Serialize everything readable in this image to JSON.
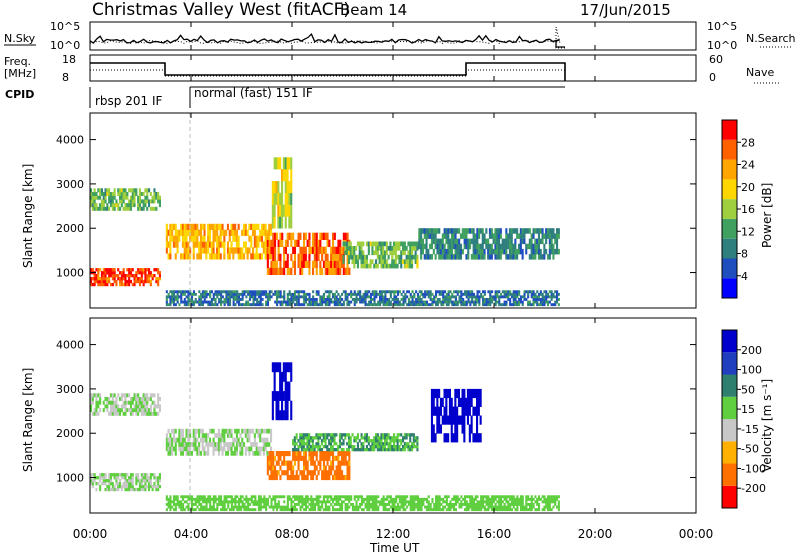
{
  "header": {
    "title": "Christmas Valley West (fitACF)",
    "beam": "Beam 14",
    "date": "17/Jun/2015"
  },
  "top_panels": {
    "nsky_label": "N.Sky",
    "nsky_ticks": [
      "10^5",
      "10^0"
    ],
    "nsearch_label": "N.Search",
    "freq_label_1": "Freq.",
    "freq_label_2": "[MHz]",
    "freq_ticks": [
      "18",
      "8"
    ],
    "nave_ticks": [
      "60",
      "0"
    ],
    "nave_label": "Nave",
    "cpid_label": "CPID",
    "cpid_segments": [
      {
        "label": "rbsp 201 IF",
        "start_hour": 0.0,
        "end_hour": 3.0
      },
      {
        "label": "normal (fast) 151 IF",
        "start_hour": 3.0,
        "end_hour": 18.6
      }
    ]
  },
  "colorbars": {
    "power": {
      "label": "Power [dB]",
      "ticks": [
        "28",
        "24",
        "20",
        "16",
        "12",
        "8",
        "4"
      ]
    },
    "velocity": {
      "label": "Velocity [m s⁻¹]",
      "ticks": [
        "200",
        "100",
        "50",
        "15",
        "-15",
        "-50",
        "-100",
        "-200"
      ]
    }
  },
  "axes": {
    "ylabel": "Slant Range [km]",
    "yticks": [
      "4000",
      "3000",
      "2000",
      "1000"
    ],
    "xlabel": "Time UT",
    "xticks": [
      "00:00",
      "04:00",
      "08:00",
      "12:00",
      "16:00",
      "20:00",
      "00:00"
    ]
  },
  "colors": {
    "power_scale": [
      "#0000ff",
      "#1f4fbf",
      "#2f7f7f",
      "#3fa05f",
      "#9fcf3f",
      "#ffd700",
      "#ffa500",
      "#ff6000",
      "#ff0000"
    ],
    "velocity_scale": [
      "#0000cc",
      "#1f3fbf",
      "#2f7f6f",
      "#5fcf3f",
      "#c8c8c8",
      "#ffb000",
      "#ff7000",
      "#ff0000"
    ]
  },
  "chart_data": [
    {
      "type": "heatmap",
      "title": "Christmas Valley West (fitACF)",
      "xlabel": "Time UT",
      "ylabel": "Slant Range [km]",
      "xlim": [
        0,
        24
      ],
      "ylim": [
        200,
        4600
      ],
      "colorbar": "Power [dB]",
      "clim": [
        0,
        32
      ],
      "patches": [
        {
          "t0": 0.0,
          "t1": 2.8,
          "r0": 700,
          "r1": 1100,
          "value": 28
        },
        {
          "t0": 0.0,
          "t1": 2.8,
          "r0": 2400,
          "r1": 2900,
          "value": 14
        },
        {
          "t0": 3.0,
          "t1": 7.2,
          "r0": 1300,
          "r1": 2100,
          "value": 22
        },
        {
          "t0": 7.0,
          "t1": 10.3,
          "r0": 950,
          "r1": 1900,
          "value": 26
        },
        {
          "t0": 7.2,
          "t1": 8.0,
          "r0": 2000,
          "r1": 3600,
          "value": 18
        },
        {
          "t0": 10.0,
          "t1": 13.0,
          "r0": 1100,
          "r1": 1700,
          "value": 14
        },
        {
          "t0": 13.0,
          "t1": 18.6,
          "r0": 1300,
          "r1": 2000,
          "value": 10
        },
        {
          "t0": 3.0,
          "t1": 18.6,
          "r0": 250,
          "r1": 600,
          "value": 8
        }
      ]
    },
    {
      "type": "heatmap",
      "xlabel": "Time UT",
      "ylabel": "Slant Range [km]",
      "xlim": [
        0,
        24
      ],
      "ylim": [
        200,
        4600
      ],
      "colorbar": "Velocity [m s⁻¹]",
      "clim": [
        -250,
        250
      ],
      "patches": [
        {
          "t0": 0.0,
          "t1": 2.8,
          "r0": 700,
          "r1": 1100,
          "value": 0
        },
        {
          "t0": 0.0,
          "t1": 2.8,
          "r0": 2400,
          "r1": 2900,
          "value": 0
        },
        {
          "t0": 3.0,
          "t1": 7.2,
          "r0": 1500,
          "r1": 2100,
          "value": 0
        },
        {
          "t0": 7.0,
          "t1": 10.3,
          "r0": 950,
          "r1": 1600,
          "value": -150
        },
        {
          "t0": 7.2,
          "t1": 8.0,
          "r0": 2300,
          "r1": 3600,
          "value": 220
        },
        {
          "t0": 8.0,
          "t1": 13.0,
          "r0": 1600,
          "r1": 2000,
          "value": 60
        },
        {
          "t0": 13.5,
          "t1": 15.5,
          "r0": 1800,
          "r1": 3000,
          "value": 220
        },
        {
          "t0": 3.0,
          "t1": 18.6,
          "r0": 250,
          "r1": 600,
          "value": 30
        }
      ]
    }
  ]
}
